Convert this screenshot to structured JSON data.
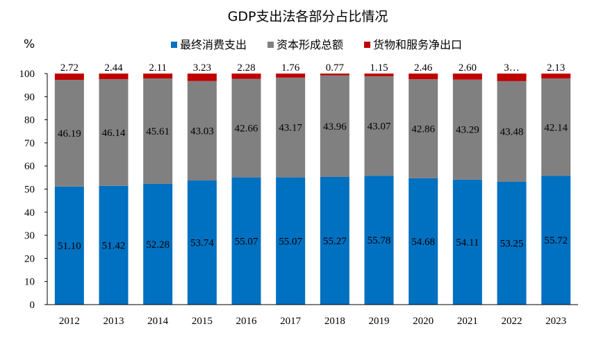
{
  "chart_data": {
    "type": "bar",
    "stacked": true,
    "title": "GDP支出法各部分占比情况",
    "unit_label": "%",
    "categories": [
      "2012",
      "2013",
      "2014",
      "2015",
      "2016",
      "2017",
      "2018",
      "2019",
      "2020",
      "2021",
      "2022",
      "2023"
    ],
    "series": [
      {
        "name": "最终消费支出",
        "color": "#0070C0",
        "values": [
          51.1,
          51.42,
          52.28,
          53.74,
          55.07,
          55.07,
          55.27,
          55.78,
          54.68,
          54.11,
          53.25,
          55.72
        ],
        "labels": [
          "51.10",
          "51.42",
          "52.28",
          "53.74",
          "55.07",
          "55.07",
          "55.27",
          "55.78",
          "54.68",
          "54.11",
          "53.25",
          "55.72"
        ]
      },
      {
        "name": "资本形成总额",
        "color": "#808080",
        "values": [
          46.19,
          46.14,
          45.61,
          43.03,
          42.66,
          43.17,
          43.96,
          43.07,
          42.86,
          43.29,
          43.48,
          42.14
        ],
        "labels": [
          "46.19",
          "46.14",
          "45.61",
          "43.03",
          "42.66",
          "43.17",
          "43.96",
          "43.07",
          "42.86",
          "43.29",
          "43.48",
          "42.14"
        ]
      },
      {
        "name": "货物和服务净出口",
        "color": "#C00000",
        "values": [
          2.72,
          2.44,
          2.11,
          3.23,
          2.28,
          1.76,
          0.77,
          1.15,
          2.46,
          2.6,
          3.27,
          2.13
        ],
        "labels": [
          "2.72",
          "2.44",
          "2.11",
          "3.23",
          "2.28",
          "1.76",
          "0.77",
          "1.15",
          "2.46",
          "2.60",
          "3…",
          "2.13"
        ]
      }
    ],
    "y_ticks": [
      "0",
      "10",
      "20",
      "30",
      "40",
      "50",
      "60",
      "70",
      "80",
      "90",
      "100"
    ],
    "ylim": [
      0,
      100
    ],
    "grid": false,
    "legend_position": "top"
  }
}
